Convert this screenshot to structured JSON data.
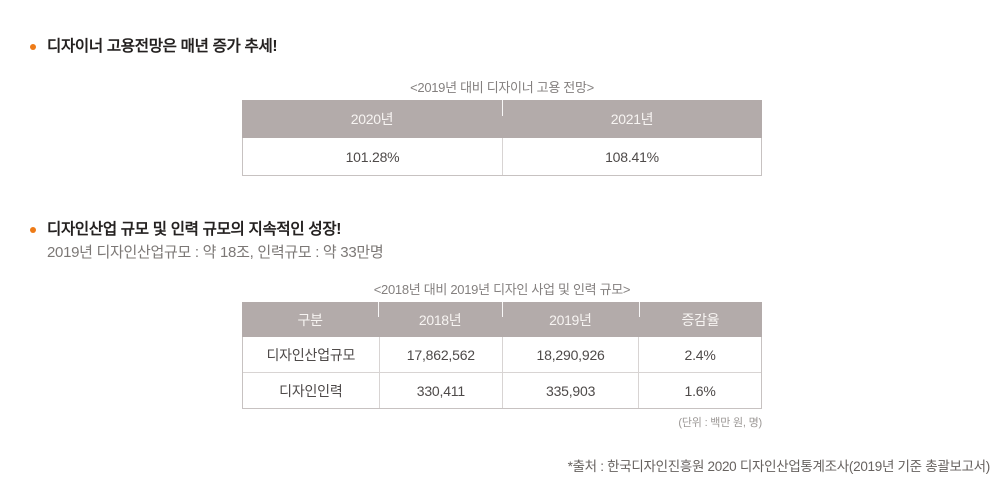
{
  "colors": {
    "accent_bullet": "#ee7b17",
    "table_header_bg": "#b3abaa",
    "table_header_text": "#f7f4f2"
  },
  "section_employment": {
    "heading": "디자이너 고용전망은 매년 증가 추세!",
    "table": {
      "title": "<2019년 대비 디자이너 고용 전망>",
      "headers": [
        "2020년",
        "2021년"
      ],
      "rows": [
        [
          "101.28%",
          "108.41%"
        ]
      ]
    }
  },
  "section_industry": {
    "heading": "디자인산업 규모 및 인력 규모의 지속적인 성장!",
    "subtitle": "2019년 디자인산업규모 : 약 18조, 인력규모 : 약 33만명",
    "table": {
      "title": "<2018년 대비 2019년 디자인 사업 및 인력 규모>",
      "headers": [
        "구분",
        "2018년",
        "2019년",
        "증감율"
      ],
      "rows": [
        [
          "디자인산업규모",
          "17,862,562",
          "18,290,926",
          "2.4%"
        ],
        [
          "디자인인력",
          "330,411",
          "335,903",
          "1.6%"
        ]
      ],
      "unit_note": "(단위 : 백만 원, 명)"
    }
  },
  "footer": {
    "source": "*출처 : 한국디자인진흥원 2020 디자인산업통계조사(2019년 기준 총괄보고서)"
  }
}
